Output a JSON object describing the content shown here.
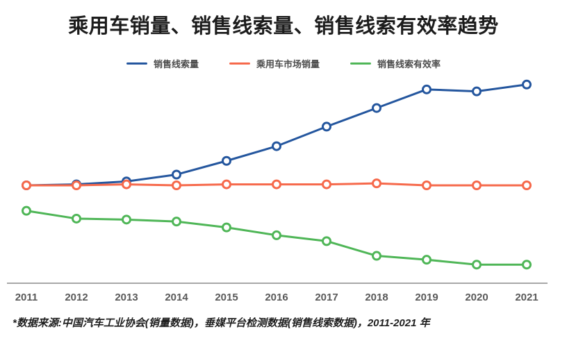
{
  "title": "乘用车销量、销售线索量、销售线索有效率趋势",
  "footnote": "*数据来源:中国汽车工业协会(销量数据)，垂媒平台检测数据(销售线索数据)，2011-2021 年",
  "colors": {
    "series_blue": "#24569E",
    "series_orange": "#F6694B",
    "series_green": "#4FB657",
    "axis_line": "#8C8C8C",
    "tick_label": "#595959",
    "title_text": "#1C1C1C",
    "legend_text": "#4D4D4D",
    "footnote_text": "#1F1F1F",
    "background": "#FFFFFF"
  },
  "chart_data": {
    "type": "line",
    "title": "乘用车销量、销售线索量、销售线索有效率趋势",
    "categories": [
      "2011",
      "2012",
      "2013",
      "2014",
      "2015",
      "2016",
      "2017",
      "2018",
      "2019",
      "2020",
      "2021"
    ],
    "series": [
      {
        "name": "销售线索量",
        "color": "#24569E",
        "values": [
          100,
          101,
          104,
          111,
          125,
          140,
          160,
          179,
          198,
          196,
          203
        ]
      },
      {
        "name": "乘用车市场销量",
        "color": "#F6694B",
        "values": [
          100,
          100,
          101,
          100,
          101,
          101,
          101,
          102,
          100,
          100,
          100
        ]
      },
      {
        "name": "销售线索有效率",
        "color": "#4FB657",
        "values": [
          74,
          66,
          65,
          63,
          57,
          49,
          43,
          28,
          24,
          19,
          19
        ]
      }
    ],
    "xlabel": "",
    "ylabel": "",
    "ylim": [
      0,
      220
    ],
    "y_axis_visible": false,
    "grid": false,
    "legend_position": "top",
    "marker": "open-circle"
  }
}
